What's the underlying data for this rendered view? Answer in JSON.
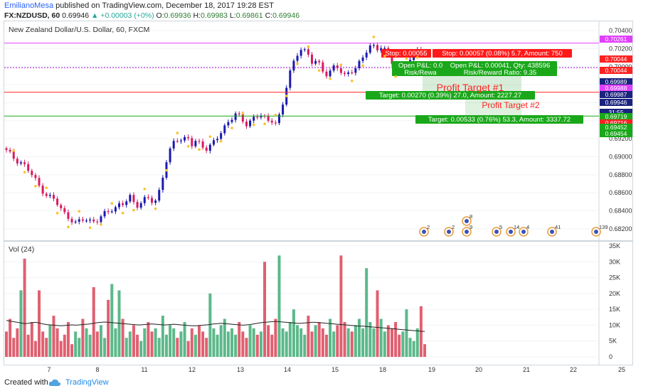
{
  "header": {
    "author": "EmilianoMesa",
    "published_text": "published on TradingView.com, December 18, 2017 19:28 EST",
    "symbol": "FX:NZDUSD, 60",
    "last": "0.69946",
    "change": "▲ +0.00003 (+0%)",
    "o_label": "O:",
    "o": "0.69936",
    "h_label": "H:",
    "h": "0.69983",
    "l_label": "L:",
    "l": "0.69861",
    "c_label": "C:",
    "c": "0.69946"
  },
  "chart": {
    "title": "New Zealand Dollar/U.S. Dollar, 60, FXCM",
    "volume_title": "Vol (24)"
  },
  "footer": {
    "created_with": "Created with",
    "brand": "TradingView"
  },
  "colors": {
    "up": "#26a69a",
    "down": "#ef5350",
    "candle_up": "#1a1aaf",
    "candle_down": "#d81b60",
    "vol_up": "#5cb88a",
    "vol_down": "#e06070",
    "stop": "#ff2222",
    "target": "#1aa81a",
    "magenta": "#e040fb",
    "navy": "#1a237e"
  },
  "chart_data": {
    "type": "candlestick",
    "title": "New Zealand Dollar/U.S. Dollar, 60, FXCM",
    "ylim": [
      0.6812,
      0.7044
    ],
    "x_ticks": [
      "7",
      "8",
      "11",
      "12",
      "13",
      "14",
      "15",
      "18",
      "19",
      "20",
      "21",
      "22",
      "25"
    ],
    "y_ticks": [
      0.682,
      0.684,
      0.686,
      0.688,
      0.69,
      0.692,
      0.694,
      0.696,
      0.698,
      0.7,
      0.702,
      0.704
    ],
    "y_tick_labels": [
      "0.68200",
      "0.68400",
      "0.68600",
      "0.68800",
      "0.69000",
      "0.69200",
      "0.69400",
      "0.69600",
      "0.69800",
      "0.70000",
      "0.70200",
      "0.70400"
    ],
    "price_path": [
      [
        0,
        0.6906
      ],
      [
        2,
        0.6898
      ],
      [
        4,
        0.6893
      ],
      [
        6,
        0.6882
      ],
      [
        8,
        0.6868
      ],
      [
        10,
        0.6858
      ],
      [
        12,
        0.6852
      ],
      [
        14,
        0.6838
      ],
      [
        16,
        0.6832
      ],
      [
        17,
        0.6826
      ],
      [
        19,
        0.683
      ],
      [
        21,
        0.6828
      ],
      [
        23,
        0.6832
      ],
      [
        25,
        0.6838
      ],
      [
        27,
        0.6842
      ],
      [
        28,
        0.6848
      ],
      [
        30,
        0.6852
      ],
      [
        31,
        0.6855
      ],
      [
        32,
        0.6844
      ],
      [
        33,
        0.6846
      ],
      [
        34,
        0.6852
      ],
      [
        35,
        0.6858
      ],
      [
        36,
        0.6852
      ],
      [
        37,
        0.6848
      ],
      [
        38,
        0.686
      ],
      [
        39,
        0.688
      ],
      [
        40,
        0.69
      ],
      [
        41,
        0.6912
      ],
      [
        42,
        0.6922
      ],
      [
        43,
        0.6918
      ],
      [
        44,
        0.6916
      ],
      [
        45,
        0.6922
      ],
      [
        46,
        0.6914
      ],
      [
        47,
        0.6918
      ],
      [
        48,
        0.6916
      ],
      [
        49,
        0.6911
      ],
      [
        50,
        0.6906
      ],
      [
        51,
        0.6912
      ],
      [
        52,
        0.692
      ],
      [
        53,
        0.6926
      ],
      [
        54,
        0.6932
      ],
      [
        55,
        0.6938
      ],
      [
        56,
        0.6942
      ],
      [
        57,
        0.6946
      ],
      [
        58,
        0.6944
      ],
      [
        59,
        0.694
      ],
      [
        60,
        0.6936
      ],
      [
        61,
        0.6942
      ],
      [
        62,
        0.6944
      ],
      [
        63,
        0.6946
      ],
      [
        64,
        0.6943
      ],
      [
        65,
        0.694
      ],
      [
        66,
        0.6942
      ],
      [
        67,
        0.6938
      ],
      [
        68,
        0.6946
      ],
      [
        69,
        0.6962
      ],
      [
        70,
        0.6986
      ],
      [
        71,
        0.7
      ],
      [
        72,
        0.7012
      ],
      [
        73,
        0.7022
      ],
      [
        74,
        0.7018
      ],
      [
        75,
        0.7012
      ],
      [
        76,
        0.7004
      ],
      [
        77,
        0.7006
      ],
      [
        78,
        0.7002
      ],
      [
        79,
        0.6994
      ],
      [
        80,
        0.6992
      ],
      [
        81,
        0.6997
      ],
      [
        82,
        0.7
      ],
      [
        83,
        0.6995
      ],
      [
        84,
        0.699
      ],
      [
        85,
        0.6994
      ],
      [
        86,
        0.6997
      ],
      [
        87,
        0.6999
      ],
      [
        88,
        0.7004
      ],
      [
        89,
        0.7012
      ],
      [
        90,
        0.7022
      ],
      [
        91,
        0.7025
      ],
      [
        92,
        0.702
      ],
      [
        93,
        0.7023
      ],
      [
        94,
        0.7018
      ],
      [
        95,
        0.701
      ],
      [
        96,
        0.7004
      ],
      [
        97,
        0.6998
      ],
      [
        98,
        0.6996
      ],
      [
        99,
        0.7002
      ],
      [
        100,
        0.7003
      ],
      [
        101,
        0.701
      ],
      [
        102,
        0.702
      ],
      [
        103,
        0.7018
      ],
      [
        104,
        0.7012
      ]
    ],
    "volume": {
      "ylim": [
        0,
        35000
      ],
      "y_ticks": [
        0,
        5000,
        10000,
        15000,
        20000,
        25000,
        30000,
        35000
      ],
      "y_tick_labels": [
        "0",
        "5K",
        "10K",
        "15K",
        "20K",
        "25K",
        "30K",
        "35K"
      ],
      "values": [
        8000,
        12000,
        6000,
        9000,
        21000,
        31000,
        7000,
        11000,
        5000,
        21000,
        8000,
        6000,
        10000,
        13000,
        9000,
        5000,
        7000,
        11000,
        4000,
        8000,
        6000,
        12000,
        9000,
        7000,
        22000,
        8000,
        10000,
        6000,
        18000,
        23000,
        9000,
        21000,
        12000,
        6000,
        8000,
        10000,
        7000,
        5000,
        9000,
        11000,
        8000,
        9000,
        6000,
        13000,
        7000,
        10000,
        9000,
        6000,
        8000,
        11000,
        5000,
        9000,
        7000,
        10000,
        8000,
        6000,
        20000,
        9000,
        7000,
        10000,
        12000,
        8000,
        9000,
        7000,
        11000,
        8000,
        6000,
        10000,
        9000,
        7000,
        8000,
        30000,
        10000,
        7000,
        12000,
        32000,
        9000,
        8000,
        11000,
        15000,
        10000,
        9000,
        7000,
        13000,
        8000,
        10000,
        11000,
        9000,
        7000,
        12000,
        8000,
        10000,
        32000,
        11000,
        9000,
        8000,
        10000,
        12000,
        9000,
        28000,
        11000,
        9000,
        21000,
        12000,
        8000,
        10000,
        9000,
        11000,
        7000,
        8000,
        15000,
        6000,
        5000,
        9000,
        16000,
        4000
      ],
      "ma": [
        11500,
        11300,
        11100,
        10900,
        10700,
        10500,
        10600,
        10800,
        10900,
        10700,
        10400,
        10200,
        10100,
        10000,
        9900,
        9800,
        9900,
        10000,
        10100,
        10000,
        10100,
        10200,
        10300,
        10400,
        10600,
        10800,
        10900,
        11000,
        10900,
        10800,
        10700,
        10600,
        10500,
        10400,
        10300,
        10200,
        10100,
        10100,
        10200,
        10300,
        10400,
        10300,
        10200,
        10100,
        10100,
        10200,
        10300,
        10200,
        10100,
        10000,
        9900,
        9800,
        9800,
        9900,
        10000,
        10100,
        10200,
        10400,
        10500,
        10600,
        10500,
        10400,
        10300,
        10200,
        10100,
        10000,
        10100,
        10200,
        10400,
        10600,
        10800,
        10900,
        11000,
        11100,
        11200,
        11100,
        11000,
        10900,
        10800,
        10700,
        10600,
        10600,
        10700,
        10800,
        10900,
        10900,
        10800,
        10700,
        10600,
        10500,
        10400,
        10300,
        10200,
        10100,
        10000,
        9900,
        9800,
        9700,
        9700,
        9600,
        9500,
        9400,
        9300,
        9200,
        9100,
        9000,
        8900,
        8800,
        8700,
        8600,
        8500,
        8400,
        8300,
        8200,
        8100,
        8000
      ]
    },
    "levels": [
      {
        "value": 0.70261,
        "label": "0.70261",
        "color": "#e040fb"
      },
      {
        "value": 0.70044,
        "label": "0.70044",
        "color": "#ff2222"
      },
      {
        "value": 0.69989,
        "label": "0.69989",
        "color": "#1a237e"
      },
      {
        "value": 0.69988,
        "label": "0.69988",
        "color": "#e040fb"
      },
      {
        "value": 0.69987,
        "label": "0.69987",
        "color": "#1a237e"
      },
      {
        "value": 0.69946,
        "label": "0.69946",
        "color": "#1a237e"
      },
      {
        "value": 0.69719,
        "label": "0.69719",
        "color": "#1aa81a"
      },
      {
        "value": 0.69716,
        "label": "0.69716",
        "color": "#ff2222"
      },
      {
        "value": 0.69452,
        "label": "0.69452",
        "color": "#1aa81a"
      },
      {
        "value": 0.69454,
        "label": "0.69454",
        "color": "#1aa81a"
      }
    ],
    "countdown": "31:55",
    "annotations": {
      "stop_left": "Stop: 0.00055",
      "stop_right": "Stop: 0.00057 (0.08%) 5.7, Amount: 750",
      "pnl_left": "Open P&L: 0.0",
      "pnl_left_ratio": "Risk/Rewa",
      "pnl_right": "Open P&L: 0.00041, Qty: 438596",
      "pnl_right_ratio": "Risk/Reward Ratio: 9.35",
      "profit_target_1": "Profit Target #1",
      "target_1": "Target: 0.00270 (0.39%) 27.0, Amount: 2227.27",
      "profit_target_2": "Profit Target #2",
      "target_2": "Target: 0.00533 (0.76%) 53.3, Amount: 3337.72"
    },
    "event_counts": [
      "2",
      "2",
      "9",
      "8",
      "5",
      "14",
      "4",
      "41",
      "139"
    ]
  }
}
